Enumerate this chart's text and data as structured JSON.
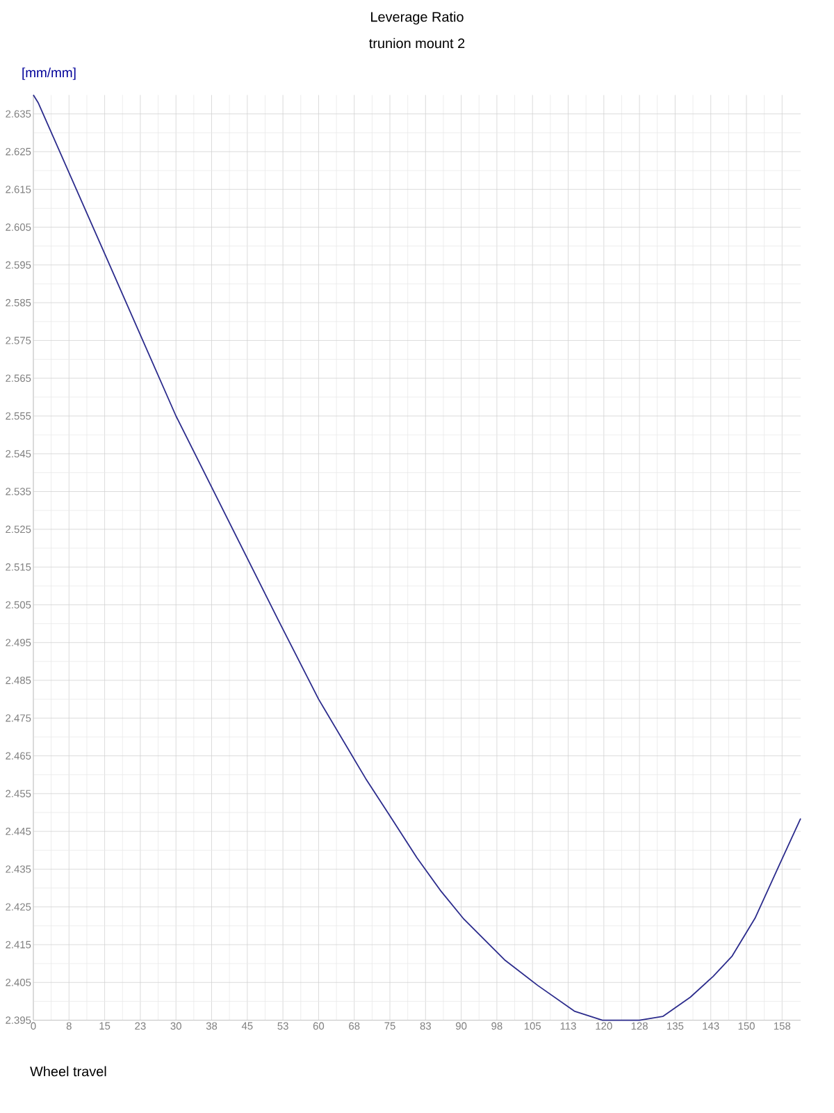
{
  "chart_data": {
    "type": "line",
    "title": "Leverage Ratio",
    "subtitle": "trunion mount 2",
    "xlabel": "Wheel travel",
    "ylabel": "[mm/mm]",
    "x": [
      0,
      1,
      15,
      30,
      51.5,
      60,
      69.9,
      74.9,
      80.7,
      85.6,
      90.4,
      99.1,
      106.1,
      113.8,
      119.7,
      123.6,
      127.5,
      132.4,
      138.2,
      143,
      147,
      151.8,
      156.7,
      161.4
    ],
    "series": [
      {
        "color": "#2b2b8c",
        "values": [
          2.64,
          2.638,
          2.598,
          2.555,
          2.501,
          2.48,
          2.459,
          2.4493,
          2.438,
          2.4294,
          2.422,
          2.411,
          2.4042,
          2.3974,
          2.395,
          2.395,
          2.395,
          2.396,
          2.4011,
          2.4066,
          2.412,
          2.422,
          2.4355,
          2.4484
        ]
      }
    ],
    "xlim": [
      0,
      161.4
    ],
    "ylim": [
      2.395,
      2.64
    ],
    "xticks": [
      0,
      {
        "value": 7.5,
        "label": "8"
      },
      15,
      {
        "value": 22.5,
        "label": "23"
      },
      30,
      {
        "value": 37.5,
        "label": "38"
      },
      45,
      {
        "value": 52.5,
        "label": "53"
      },
      60,
      {
        "value": 67.5,
        "label": "68"
      },
      75,
      {
        "value": 82.5,
        "label": "83"
      },
      90,
      {
        "value": 97.5,
        "label": "98"
      },
      105,
      {
        "value": 112.5,
        "label": "113"
      },
      120,
      {
        "value": 127.5,
        "label": "128"
      },
      135,
      {
        "value": 142.5,
        "label": "143"
      },
      150,
      {
        "value": 157.5,
        "label": "158"
      }
    ],
    "yticks": [
      2.395,
      2.405,
      2.415,
      2.425,
      2.435,
      2.445,
      2.455,
      2.465,
      2.475,
      2.485,
      2.495,
      2.505,
      2.515,
      2.525,
      2.535,
      2.545,
      2.555,
      2.565,
      2.575,
      2.585,
      2.595,
      2.605,
      2.615,
      2.625,
      2.635
    ],
    "grid": true,
    "marker": "none",
    "line_style": "solid"
  }
}
